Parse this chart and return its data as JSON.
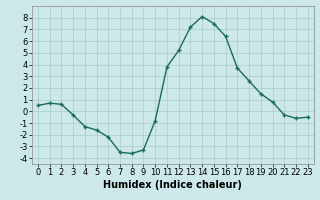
{
  "x": [
    0,
    1,
    2,
    3,
    4,
    5,
    6,
    7,
    8,
    9,
    10,
    11,
    12,
    13,
    14,
    15,
    16,
    17,
    18,
    19,
    20,
    21,
    22,
    23
  ],
  "y": [
    0.5,
    0.7,
    0.6,
    -0.3,
    -1.3,
    -1.6,
    -2.2,
    -3.5,
    -3.6,
    -3.3,
    -0.8,
    3.8,
    5.2,
    7.2,
    8.1,
    7.5,
    6.4,
    3.7,
    2.6,
    1.5,
    0.8,
    -0.3,
    -0.6,
    -0.5
  ],
  "line_color": "#1a6b5a",
  "marker": "+",
  "bg_color": "#cce8e8",
  "grid_color": "#aacccc",
  "xlabel": "Humidex (Indice chaleur)",
  "ylim": [
    -4.5,
    9.0
  ],
  "xlim": [
    -0.5,
    23.5
  ],
  "yticks": [
    -4,
    -3,
    -2,
    -1,
    0,
    1,
    2,
    3,
    4,
    5,
    6,
    7,
    8
  ],
  "xticks": [
    0,
    1,
    2,
    3,
    4,
    5,
    6,
    7,
    8,
    9,
    10,
    11,
    12,
    13,
    14,
    15,
    16,
    17,
    18,
    19,
    20,
    21,
    22,
    23
  ],
  "xlabel_fontsize": 7,
  "tick_fontsize": 6,
  "linewidth": 1.0,
  "markersize": 3,
  "markeredgewidth": 1.0
}
